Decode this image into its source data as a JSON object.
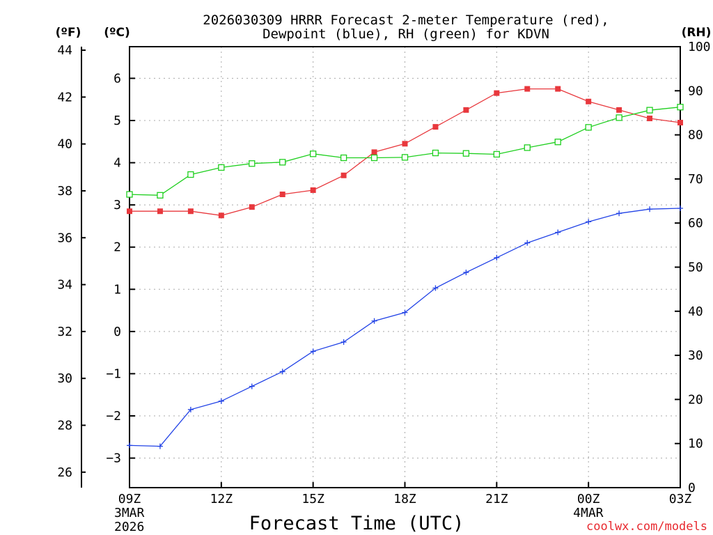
{
  "chart_data": {
    "type": "line",
    "title_line1": "2026030309 HRRR Forecast 2-meter Temperature (red),",
    "title_line2": "Dewpoint (blue), RH (green) for KDVN",
    "xlabel": "Forecast Time (UTC)",
    "credit": "coolwx.com/models",
    "units": {
      "fahrenheit": "(ºF)",
      "celsius": "(ºC)",
      "rh": "(RH)"
    },
    "x_ticks": [
      {
        "hour": 0,
        "label": "09Z",
        "sub1": "3MAR",
        "sub2": "2026"
      },
      {
        "hour": 3,
        "label": "12Z",
        "sub1": "",
        "sub2": ""
      },
      {
        "hour": 6,
        "label": "15Z",
        "sub1": "",
        "sub2": ""
      },
      {
        "hour": 9,
        "label": "18Z",
        "sub1": "",
        "sub2": ""
      },
      {
        "hour": 12,
        "label": "21Z",
        "sub1": "",
        "sub2": ""
      },
      {
        "hour": 15,
        "label": "00Z",
        "sub1": "4MAR",
        "sub2": ""
      },
      {
        "hour": 18,
        "label": "03Z",
        "sub1": "",
        "sub2": ""
      }
    ],
    "xlim": [
      0,
      18
    ],
    "celsius_axis": {
      "ticks": [
        6,
        5,
        4,
        3,
        2,
        1,
        0,
        -1,
        -2,
        -3
      ],
      "labels": [
        "6",
        "5",
        "4",
        "3",
        "2",
        "1",
        "0",
        "−1",
        "−2",
        "−3"
      ],
      "ylim": [
        -3.7,
        6.75
      ]
    },
    "fahrenheit_axis": {
      "ticks": [
        44,
        42,
        40,
        38,
        36,
        34,
        32,
        30,
        28,
        26
      ],
      "labels": [
        "44",
        "42",
        "40",
        "38",
        "36",
        "34",
        "32",
        "30",
        "28",
        "26"
      ]
    },
    "rh_axis": {
      "ticks": [
        100,
        90,
        80,
        70,
        60,
        50,
        40,
        30,
        20,
        10,
        0
      ],
      "labels": [
        "100",
        "90",
        "80",
        "70",
        "60",
        "50",
        "40",
        "30",
        "20",
        "10",
        "0"
      ],
      "ylim": [
        0,
        100
      ]
    },
    "series": [
      {
        "name": "Temperature",
        "axis": "celsius",
        "color": "#e8383d",
        "marker": "filled-square",
        "hours": [
          0,
          1,
          2,
          3,
          4,
          5,
          6,
          7,
          8,
          9,
          10,
          11,
          12,
          13,
          14,
          15,
          16,
          17,
          18
        ],
        "values": [
          2.85,
          2.85,
          2.85,
          2.75,
          2.95,
          3.25,
          3.35,
          3.7,
          4.25,
          4.45,
          4.85,
          5.25,
          5.65,
          5.75,
          5.75,
          5.45,
          5.25,
          5.05,
          4.95
        ]
      },
      {
        "name": "Dewpoint",
        "axis": "celsius",
        "color": "#2142e6",
        "marker": "plus",
        "hours": [
          0,
          1,
          2,
          3,
          4,
          5,
          6,
          7,
          8,
          9,
          10,
          11,
          12,
          13,
          14,
          15,
          16,
          17,
          18
        ],
        "values": [
          -2.7,
          -2.72,
          -1.85,
          -1.65,
          -1.3,
          -0.95,
          -0.47,
          -0.25,
          0.25,
          0.45,
          1.03,
          1.4,
          1.75,
          2.1,
          2.35,
          2.6,
          2.8,
          2.9,
          2.92
        ]
      },
      {
        "name": "RH",
        "axis": "rh",
        "color": "#1ecf1e",
        "marker": "open-square",
        "hours": [
          0,
          1,
          2,
          3,
          4,
          5,
          6,
          7,
          8,
          9,
          10,
          11,
          12,
          13,
          14,
          15,
          16,
          17,
          18
        ],
        "values": [
          66.5,
          66.3,
          71,
          72.6,
          73.5,
          73.8,
          75.7,
          74.8,
          74.8,
          74.9,
          75.9,
          75.8,
          75.6,
          77.1,
          78.4,
          81.7,
          83.9,
          85.6,
          86.3
        ]
      }
    ]
  }
}
